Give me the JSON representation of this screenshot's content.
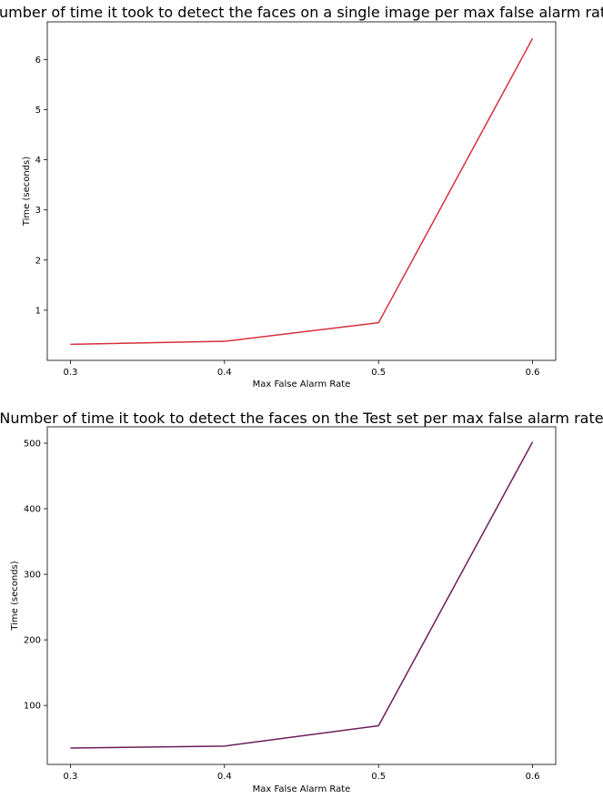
{
  "chart_data": [
    {
      "type": "line",
      "title": "Number of time it took to detect the faces on a single image per max false alarm rate",
      "xlabel": "Max False Alarm Rate",
      "ylabel": "Time (seconds)",
      "x": [
        0.3,
        0.4,
        0.5,
        0.6
      ],
      "x_ticks": [
        0.3,
        0.4,
        0.5,
        0.6
      ],
      "x_tick_labels": [
        "0.3",
        "0.4",
        "0.5",
        "0.6"
      ],
      "xlim": [
        0.285,
        0.615
      ],
      "y_ticks": [
        1,
        2,
        3,
        4,
        5,
        6
      ],
      "y_tick_labels": [
        "1",
        "2",
        "3",
        "4",
        "5",
        "6"
      ],
      "ylim": [
        0.0,
        6.75
      ],
      "grid": false,
      "series": [
        {
          "values": [
            0.32,
            0.38,
            0.75,
            6.42
          ],
          "color": "#d62f3b"
        }
      ]
    },
    {
      "type": "line",
      "title": "Number of time it took to detect the faces on the Test set per max false alarm rate",
      "xlabel": "Max False Alarm Rate",
      "ylabel": "Time (seconds)",
      "x": [
        0.3,
        0.4,
        0.5,
        0.6
      ],
      "x_ticks": [
        0.3,
        0.4,
        0.5,
        0.6
      ],
      "x_tick_labels": [
        "0.3",
        "0.4",
        "0.5",
        "0.6"
      ],
      "xlim": [
        0.285,
        0.615
      ],
      "y_ticks": [
        100,
        200,
        300,
        400,
        500
      ],
      "y_tick_labels": [
        "100",
        "200",
        "300",
        "400",
        "500"
      ],
      "ylim": [
        10,
        525
      ],
      "grid": false,
      "series": [
        {
          "values": [
            35,
            38,
            69,
            502
          ],
          "color": "#6b1d5a"
        }
      ]
    }
  ]
}
